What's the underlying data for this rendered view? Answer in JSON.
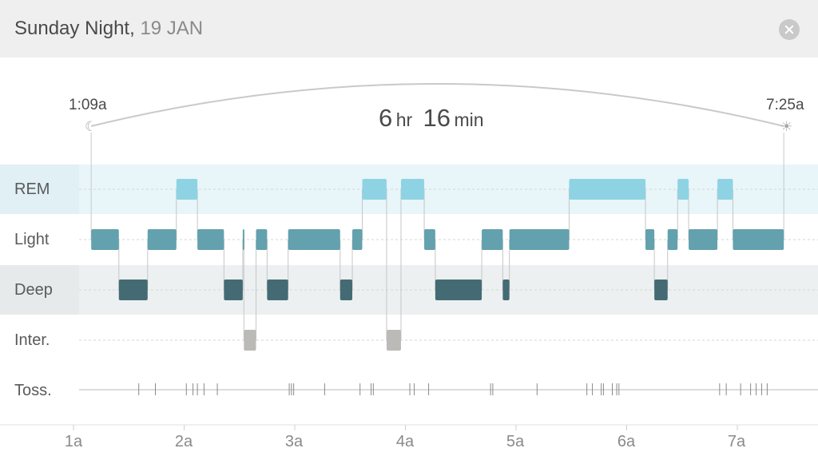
{
  "header": {
    "day": "Sunday Night,",
    "date": "19 JAN"
  },
  "summary": {
    "start_time": "1:09a",
    "end_time": "7:25a",
    "hours": "6",
    "hours_unit": "hr",
    "minutes": "16",
    "minutes_unit": "min"
  },
  "icons": {
    "start": "moon-icon",
    "end": "sun-icon",
    "close": "close-icon"
  },
  "rows": [
    "REM",
    "Light",
    "Deep",
    "Inter.",
    "Toss."
  ],
  "axis": [
    "1a",
    "2a",
    "3a",
    "4a",
    "5a",
    "6a",
    "7a"
  ],
  "colors": {
    "rem": "#8ed3e3",
    "light": "#63a1ae",
    "deep": "#446b74",
    "inter": "#bbbab6",
    "rem_band": "#e8f5f9",
    "deep_band": "#ecf0f1"
  },
  "chart_data": {
    "type": "timeline",
    "x_unit": "hours after midnight",
    "x_range": [
      1.0,
      7.6
    ],
    "stages": [
      "REM",
      "Light",
      "Deep",
      "Inter."
    ],
    "segments": [
      {
        "stage": "Light",
        "start": 1.16,
        "end": 1.41
      },
      {
        "stage": "Deep",
        "start": 1.41,
        "end": 1.67
      },
      {
        "stage": "Light",
        "start": 1.67,
        "end": 1.93
      },
      {
        "stage": "REM",
        "start": 1.93,
        "end": 2.12
      },
      {
        "stage": "Light",
        "start": 2.12,
        "end": 2.36
      },
      {
        "stage": "Deep",
        "start": 2.36,
        "end": 2.53
      },
      {
        "stage": "Light",
        "start": 2.53,
        "end": 2.54
      },
      {
        "stage": "Inter.",
        "start": 2.54,
        "end": 2.65
      },
      {
        "stage": "Light",
        "start": 2.65,
        "end": 2.75
      },
      {
        "stage": "Deep",
        "start": 2.75,
        "end": 2.94
      },
      {
        "stage": "Light",
        "start": 2.94,
        "end": 3.41
      },
      {
        "stage": "Deep",
        "start": 3.41,
        "end": 3.52
      },
      {
        "stage": "Light",
        "start": 3.52,
        "end": 3.61
      },
      {
        "stage": "REM",
        "start": 3.61,
        "end": 3.83
      },
      {
        "stage": "Inter.",
        "start": 3.83,
        "end": 3.96
      },
      {
        "stage": "REM",
        "start": 3.96,
        "end": 4.17
      },
      {
        "stage": "Light",
        "start": 4.17,
        "end": 4.27
      },
      {
        "stage": "Deep",
        "start": 4.27,
        "end": 4.69
      },
      {
        "stage": "Light",
        "start": 4.69,
        "end": 4.88
      },
      {
        "stage": "Deep",
        "start": 4.88,
        "end": 4.94
      },
      {
        "stage": "Light",
        "start": 4.94,
        "end": 5.48
      },
      {
        "stage": "REM",
        "start": 5.48,
        "end": 6.17
      },
      {
        "stage": "Light",
        "start": 6.17,
        "end": 6.25
      },
      {
        "stage": "Deep",
        "start": 6.25,
        "end": 6.37
      },
      {
        "stage": "Light",
        "start": 6.37,
        "end": 6.46
      },
      {
        "stage": "REM",
        "start": 6.46,
        "end": 6.56
      },
      {
        "stage": "Light",
        "start": 6.56,
        "end": 6.82
      },
      {
        "stage": "REM",
        "start": 6.82,
        "end": 6.96
      },
      {
        "stage": "Light",
        "start": 6.96,
        "end": 7.42
      }
    ],
    "tosses": [
      1.59,
      1.74,
      2.02,
      2.08,
      2.12,
      2.18,
      2.3,
      2.95,
      2.97,
      2.99,
      3.27,
      3.59,
      3.69,
      3.71,
      4.04,
      4.08,
      4.21,
      4.77,
      4.79,
      5.19,
      5.64,
      5.69,
      5.77,
      5.79,
      5.87,
      5.91,
      5.93,
      6.84,
      6.9,
      7.03,
      7.12,
      7.17,
      7.22,
      7.27
    ]
  }
}
